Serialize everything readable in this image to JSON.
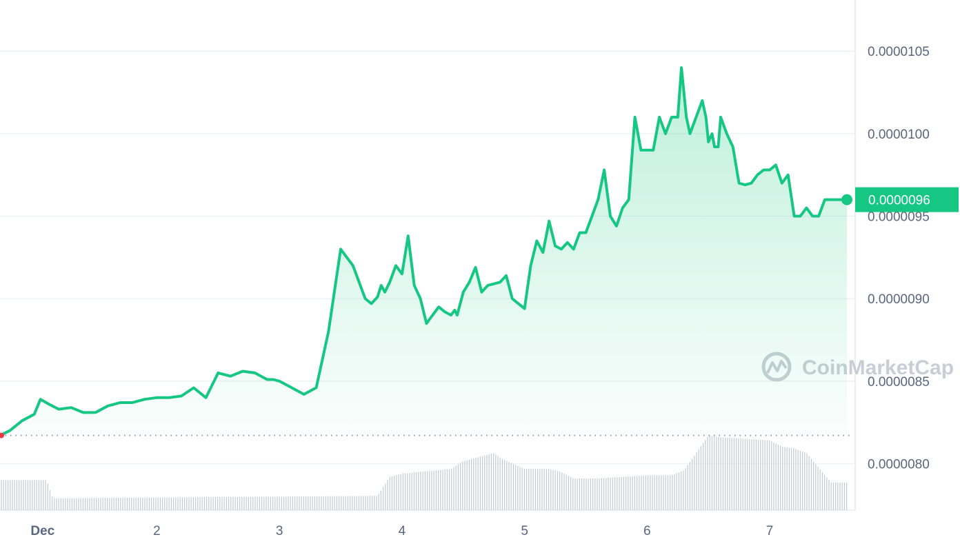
{
  "chart_data": {
    "type": "area",
    "x_tick_labels": [
      "Dec",
      "2",
      "3",
      "4",
      "5",
      "6",
      "7"
    ],
    "y_tick_labels": [
      "0.0000105",
      "0.0000100",
      "0.0000095",
      "0.0000090",
      "0.0000085",
      "0.0000080"
    ],
    "y_ticks": [
      1.05e-05,
      1e-05,
      9.5e-06,
      9e-06,
      8.5e-06,
      8e-06
    ],
    "ylim": [
      7.76e-06,
      1.081e-05
    ],
    "xlim": [
      0.72,
      7.72
    ],
    "grid": true,
    "baseline": 8.1711e-06,
    "current_price": 9.6e-06,
    "current_price_label": "0.0000096",
    "colors": {
      "line": "#16c784",
      "badge": "#16c784",
      "start_marker": "#ea3943",
      "volume": "#c3c8d1",
      "grid": "#eff2f5",
      "watermark": "#c9ced6"
    },
    "series": [
      {
        "x": [
          0.72,
          0.8,
          0.9,
          1.0,
          1.05,
          1.12,
          1.2,
          1.3,
          1.4,
          1.5,
          1.6,
          1.7,
          1.8,
          1.9,
          2.0,
          2.1,
          2.2,
          2.3,
          2.4,
          2.5,
          2.6,
          2.7,
          2.8,
          2.9,
          2.95,
          3.0,
          3.1,
          3.2,
          3.3,
          3.4,
          3.5,
          3.6,
          3.7,
          3.75,
          3.8,
          3.83,
          3.86,
          3.9,
          3.95,
          4.0,
          4.05,
          4.1,
          4.15,
          4.2,
          4.25,
          4.3,
          4.35,
          4.4,
          4.43,
          4.45,
          4.5,
          4.55,
          4.6,
          4.65,
          4.7,
          4.75,
          4.8,
          4.85,
          4.9,
          4.95,
          5.0,
          5.05,
          5.1,
          5.15,
          5.2,
          5.25,
          5.3,
          5.35,
          5.4,
          5.45,
          5.5,
          5.55,
          5.6,
          5.65,
          5.7,
          5.75,
          5.8,
          5.85,
          5.9,
          5.95,
          6.0,
          6.05,
          6.1,
          6.15,
          6.2,
          6.25,
          6.28,
          6.32,
          6.35,
          6.4,
          6.45,
          6.48,
          6.5,
          6.53,
          6.55,
          6.58,
          6.6,
          6.65,
          6.7,
          6.75,
          6.8,
          6.85,
          6.9,
          6.95,
          7.0,
          7.05,
          7.1,
          7.15,
          7.2,
          7.25,
          7.3,
          7.35,
          7.4,
          7.45,
          7.5,
          7.55,
          7.6,
          7.63
        ],
        "values": [
          8.1711e-06,
          8.2e-06,
          8.2601e-06,
          8.3e-06,
          8.3899e-06,
          8.3601e-06,
          8.3298e-06,
          8.34e-06,
          8.31e-06,
          8.3101e-06,
          8.3499e-06,
          8.3698e-06,
          8.3698e-06,
          8.3899e-06,
          8.4e-06,
          8.4e-06,
          8.4101e-06,
          8.4599e-06,
          8.4e-06,
          8.55e-06,
          8.53e-06,
          8.56e-06,
          8.55e-06,
          8.5101e-06,
          8.5101e-06,
          8.5e-06,
          8.4601e-06,
          8.42e-06,
          8.4601e-06,
          8.8e-06,
          9.3e-06,
          9.2e-06,
          9.0002e-06,
          8.9701e-06,
          9.0101e-06,
          9.0801e-06,
          9.0399e-06,
          9.1e-06,
          9.2e-06,
          9.1499e-06,
          9.3801e-06,
          9.0801e-06,
          9.0002e-06,
          8.8498e-06,
          8.9e-06,
          8.9499e-06,
          8.9198e-06,
          8.9e-06,
          8.9301e-06,
          8.9e-06,
          9.0399e-06,
          9.1e-06,
          9.1899e-06,
          9.0399e-06,
          9.0801e-06,
          9.09e-06,
          9.1e-06,
          9.1399e-06,
          9.0002e-06,
          8.97e-06,
          8.9399e-06,
          9.2e-06,
          9.35e-06,
          9.28e-06,
          9.4702e-06,
          9.3198e-06,
          9.3e-06,
          9.34e-06,
          9.3e-06,
          9.4e-06,
          9.4e-06,
          9.5e-06,
          9.6e-06,
          9.7801e-06,
          9.5e-06,
          9.4399e-06,
          9.55e-06,
          9.6e-06,
          1.01e-05,
          9.9e-06,
          9.9e-06,
          9.9e-06,
          1.01e-05,
          1e-05,
          1.01e-05,
          1.01e-05,
          1.04e-05,
          1.01e-05,
          1e-05,
          1.01e-05,
          1.02e-05,
          1.01e-05,
          9.95e-06,
          1e-05,
          9.92e-06,
          9.92e-06,
          1.01e-05,
          1e-05,
          9.92e-06,
          9.7e-06,
          9.6899e-06,
          9.7e-06,
          9.7499e-06,
          9.78e-06,
          9.78e-06,
          9.81e-06,
          9.7e-06,
          9.75e-06,
          9.5e-06,
          9.5e-06,
          9.55e-06,
          9.5e-06,
          9.5e-06,
          9.6e-06,
          9.6e-06,
          9.6e-06,
          9.6e-06,
          9.6e-06
        ]
      }
    ],
    "volume": {
      "x": [
        0.72,
        1.1,
        1.15,
        3.8,
        3.9,
        4.0,
        4.4,
        4.5,
        4.75,
        4.8,
        5.0,
        5.2,
        5.3,
        5.4,
        5.6,
        5.8,
        6.0,
        6.2,
        6.3,
        6.4,
        6.5,
        6.6,
        6.8,
        7.0,
        7.1,
        7.2,
        7.3,
        7.5,
        7.63
      ],
      "values": [
        0.38,
        0.38,
        0.15,
        0.18,
        0.42,
        0.46,
        0.52,
        0.62,
        0.72,
        0.66,
        0.52,
        0.52,
        0.48,
        0.4,
        0.4,
        0.42,
        0.44,
        0.44,
        0.5,
        0.72,
        0.94,
        0.92,
        0.9,
        0.88,
        0.8,
        0.78,
        0.72,
        0.35,
        0.35
      ]
    },
    "watermark": "CoinMarketCap"
  }
}
